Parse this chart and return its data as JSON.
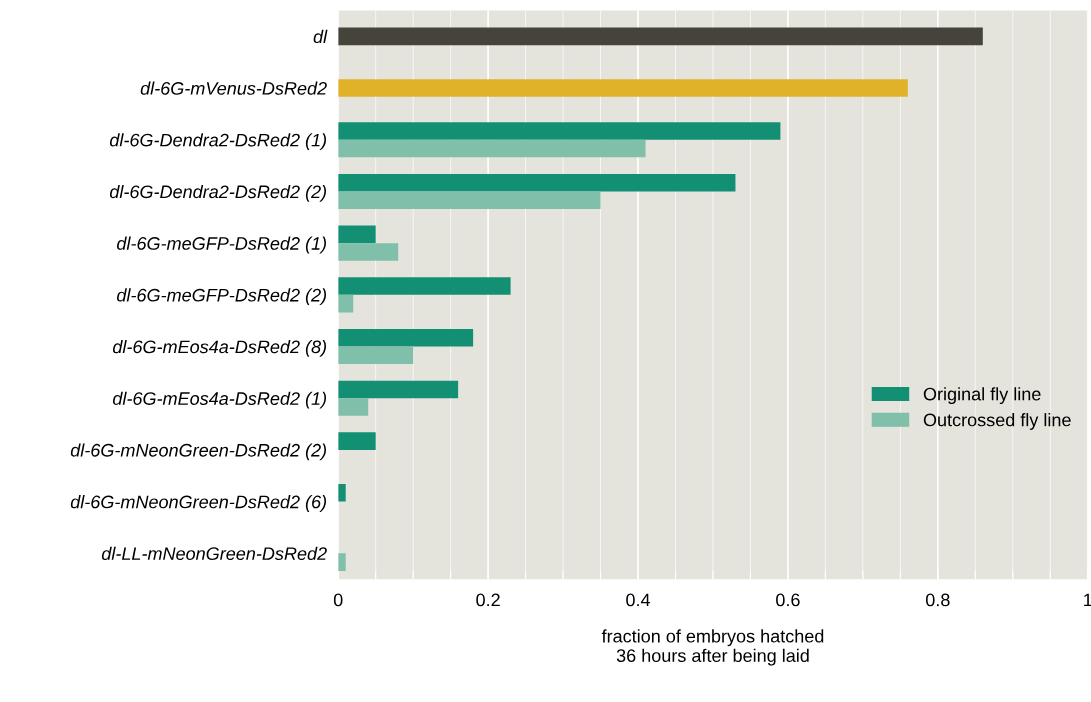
{
  "chart_data": {
    "type": "bar",
    "orientation": "horizontal",
    "xlabel": "fraction of embryos hatched\n36 hours after being laid",
    "categories": [
      "dl",
      "dl-6G-mVenus-DsRed2",
      "dl-6G-Dendra2-DsRed2 (1)",
      "dl-6G-Dendra2-DsRed2 (2)",
      "dl-6G-meGFP-DsRed2 (1)",
      "dl-6G-meGFP-DsRed2 (2)",
      "dl-6G-mEos4a-DsRed2 (8)",
      "dl-6G-mEos4a-DsRed2 (1)",
      "dl-6G-mNeonGreen-DsRed2 (2)",
      "dl-6G-mNeonGreen-DsRed2 (6)",
      "dl-LL-mNeonGreen-DsRed2"
    ],
    "series": [
      {
        "name": "Original fly line",
        "color": "#139073",
        "colors": [
          "#45433a",
          "#e0b22a",
          "#139073",
          "#139073",
          "#139073",
          "#139073",
          "#139073",
          "#139073",
          "#139073",
          "#139073",
          "#139073"
        ],
        "values": [
          0.86,
          0.76,
          0.59,
          0.53,
          0.05,
          0.23,
          0.18,
          0.16,
          0.05,
          0.01,
          0
        ]
      },
      {
        "name": "Outcrossed fly line",
        "color": "#80bfaa",
        "values": [
          null,
          null,
          0.41,
          0.35,
          0.08,
          0.02,
          0.1,
          0.04,
          0,
          0,
          0.01
        ]
      }
    ],
    "xlim": [
      0,
      1
    ],
    "xticks": [
      0,
      {
        "value": 0.05,
        "label": null
      },
      0.2,
      {
        "value": 0.1,
        "label": null
      },
      {
        "value": 0.15,
        "label": null
      },
      {
        "value": 0.25,
        "label": null
      },
      {
        "value": 0.3,
        "label": null
      },
      {
        "value": 0.35,
        "label": null
      },
      0.4,
      {
        "value": 0.45,
        "label": null
      },
      {
        "value": 0.5,
        "label": null
      },
      {
        "value": 0.55,
        "label": null
      },
      0.6,
      {
        "value": 0.65,
        "label": null
      },
      {
        "value": 0.7,
        "label": null
      },
      {
        "value": 0.75,
        "label": null
      },
      0.8,
      {
        "value": 0.85,
        "label": null
      },
      {
        "value": 0.9,
        "label": null
      },
      {
        "value": 0.95,
        "label": null
      },
      1
    ],
    "grid": "x",
    "legend": "right"
  }
}
